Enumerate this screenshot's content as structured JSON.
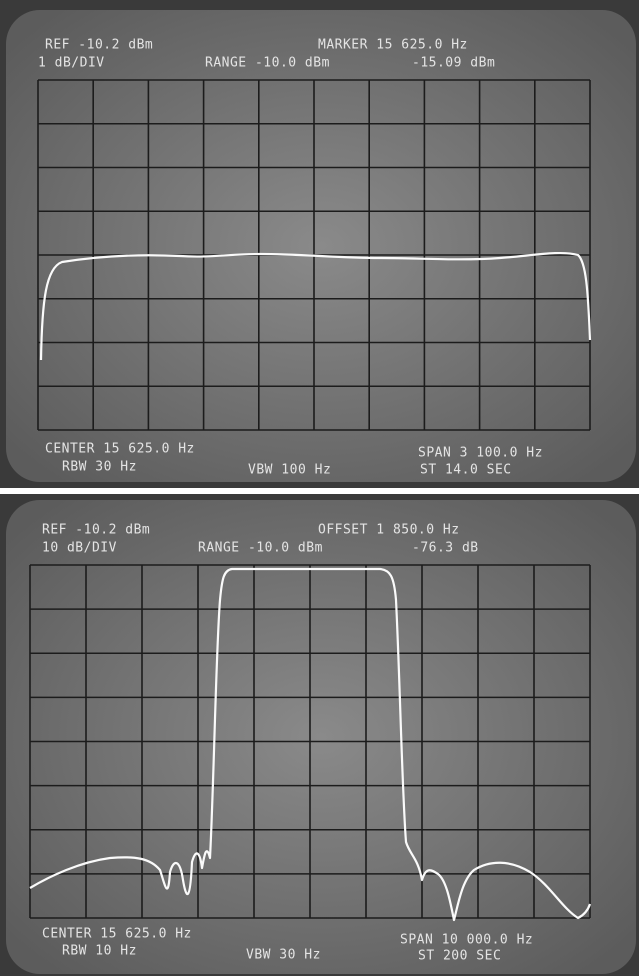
{
  "screens": [
    {
      "header": {
        "ref": "REF -10.2 dBm",
        "marker": "MARKER 15 625.0 Hz",
        "scale": "1 dB/DIV",
        "range": "RANGE -10.0 dBm",
        "reading": "-15.09 dBm"
      },
      "footer": {
        "center": "CENTER 15 625.0 Hz",
        "span": "SPAN 3 100.0 Hz",
        "rbw": "RBW 30 Hz",
        "vbw": "VBW 100 Hz",
        "sweep": "ST 14.0 SEC"
      }
    },
    {
      "header": {
        "ref": "REF -10.2 dBm",
        "marker": "OFFSET 1 850.0 Hz",
        "scale": "10 dB/DIV",
        "range": "RANGE -10.0 dBm",
        "reading": "-76.3 dB"
      },
      "footer": {
        "center": "CENTER 15 625.0 Hz",
        "span": "SPAN 10 000.0 Hz",
        "rbw": "RBW 10 Hz",
        "vbw": "VBW 30 Hz",
        "sweep": "ST 200 SEC"
      }
    }
  ]
}
